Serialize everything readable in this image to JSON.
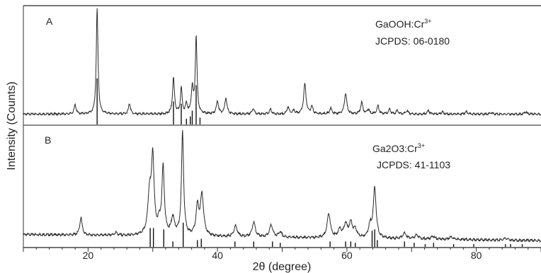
{
  "chart_data": {
    "type": "line",
    "xlabel": "2θ (degree)",
    "ylabel": "Intensity (Counts)",
    "xlim": [
      10,
      90
    ],
    "x_ticks": [
      20,
      40,
      60,
      80
    ],
    "grid": false,
    "panels": [
      {
        "label": "A",
        "compound": "GaOOH:Cr",
        "compound_superscript": "3+",
        "reference": "JCPDS: 06-0180",
        "ylim": [
          0,
          100
        ],
        "baseline": 9,
        "peaks": [
          {
            "x": 18.0,
            "height": 8,
            "width": 0.18
          },
          {
            "x": 21.4,
            "height": 91,
            "width": 0.16
          },
          {
            "x": 26.4,
            "height": 9,
            "width": 0.18
          },
          {
            "x": 33.2,
            "height": 31,
            "width": 0.18
          },
          {
            "x": 34.4,
            "height": 22,
            "width": 0.16
          },
          {
            "x": 35.2,
            "height": 8,
            "width": 0.18
          },
          {
            "x": 36.1,
            "height": 22,
            "width": 0.18
          },
          {
            "x": 36.7,
            "height": 66,
            "width": 0.16
          },
          {
            "x": 40.0,
            "height": 11,
            "width": 0.2
          },
          {
            "x": 41.3,
            "height": 14,
            "width": 0.2
          },
          {
            "x": 45.5,
            "height": 5,
            "width": 0.2
          },
          {
            "x": 48.2,
            "height": 4,
            "width": 0.2
          },
          {
            "x": 50.9,
            "height": 6,
            "width": 0.2
          },
          {
            "x": 51.8,
            "height": 3,
            "width": 0.2
          },
          {
            "x": 53.5,
            "height": 26,
            "width": 0.22
          },
          {
            "x": 54.6,
            "height": 6,
            "width": 0.2
          },
          {
            "x": 57.5,
            "height": 5,
            "width": 0.2
          },
          {
            "x": 59.8,
            "height": 18,
            "width": 0.22
          },
          {
            "x": 62.3,
            "height": 10,
            "width": 0.2
          },
          {
            "x": 63.3,
            "height": 4,
            "width": 0.2
          },
          {
            "x": 64.8,
            "height": 7,
            "width": 0.2
          },
          {
            "x": 66.6,
            "height": 4,
            "width": 0.2
          },
          {
            "x": 67.8,
            "height": 3,
            "width": 0.2
          },
          {
            "x": 69.3,
            "height": 3,
            "width": 0.2
          },
          {
            "x": 72.6,
            "height": 3,
            "width": 0.2
          },
          {
            "x": 74.8,
            "height": 2,
            "width": 0.2
          },
          {
            "x": 78.5,
            "height": 2,
            "width": 0.2
          },
          {
            "x": 82.3,
            "height": 1.5,
            "width": 0.2
          },
          {
            "x": 87.6,
            "height": 2,
            "width": 0.2
          }
        ],
        "reference_lines": [
          {
            "x": 21.4,
            "height": 40
          },
          {
            "x": 33.2,
            "height": 20
          },
          {
            "x": 34.4,
            "height": 18
          },
          {
            "x": 35.2,
            "height": 5
          },
          {
            "x": 35.8,
            "height": 7
          },
          {
            "x": 36.1,
            "height": 12
          },
          {
            "x": 36.7,
            "height": 34
          },
          {
            "x": 37.3,
            "height": 6
          }
        ]
      },
      {
        "label": "B",
        "compound": "Ga2O3:Cr",
        "compound_superscript": "3+",
        "reference": "JCPDS: 41-1103",
        "ylim": [
          0,
          100
        ],
        "baseline": 8,
        "peaks": [
          {
            "x": 18.9,
            "height": 13,
            "width": 0.22
          },
          {
            "x": 24.3,
            "height": 2,
            "width": 0.25
          },
          {
            "x": 29.5,
            "height": 30,
            "width": 0.3
          },
          {
            "x": 30.0,
            "height": 56,
            "width": 0.24
          },
          {
            "x": 31.0,
            "height": 8,
            "width": 0.3
          },
          {
            "x": 31.6,
            "height": 50,
            "width": 0.22
          },
          {
            "x": 33.1,
            "height": 13,
            "width": 0.3
          },
          {
            "x": 34.6,
            "height": 77,
            "width": 0.2
          },
          {
            "x": 36.9,
            "height": 21,
            "width": 0.26
          },
          {
            "x": 37.6,
            "height": 30,
            "width": 0.3
          },
          {
            "x": 42.8,
            "height": 8,
            "width": 0.3
          },
          {
            "x": 45.6,
            "height": 11,
            "width": 0.3
          },
          {
            "x": 48.3,
            "height": 9,
            "width": 0.3
          },
          {
            "x": 49.7,
            "height": 4,
            "width": 0.3
          },
          {
            "x": 57.2,
            "height": 18,
            "width": 0.3
          },
          {
            "x": 58.9,
            "height": 6,
            "width": 0.3
          },
          {
            "x": 59.8,
            "height": 10,
            "width": 0.3
          },
          {
            "x": 60.6,
            "height": 11,
            "width": 0.3
          },
          {
            "x": 61.3,
            "height": 6,
            "width": 0.3
          },
          {
            "x": 63.6,
            "height": 9,
            "width": 0.3
          },
          {
            "x": 64.3,
            "height": 37,
            "width": 0.26
          },
          {
            "x": 68.9,
            "height": 4,
            "width": 0.35
          },
          {
            "x": 70.8,
            "height": 3,
            "width": 0.35
          },
          {
            "x": 73.3,
            "height": 2,
            "width": 0.35
          },
          {
            "x": 76.1,
            "height": 2,
            "width": 0.35
          },
          {
            "x": 84.5,
            "height": 1.5,
            "width": 0.35
          }
        ],
        "reference_lines": [
          {
            "x": 29.6,
            "height": 14
          },
          {
            "x": 30.1,
            "height": 14
          },
          {
            "x": 31.7,
            "height": 13
          },
          {
            "x": 33.1,
            "height": 4
          },
          {
            "x": 34.7,
            "height": 18
          },
          {
            "x": 36.9,
            "height": 5
          },
          {
            "x": 37.5,
            "height": 6
          },
          {
            "x": 42.7,
            "height": 4
          },
          {
            "x": 45.6,
            "height": 4
          },
          {
            "x": 48.5,
            "height": 4
          },
          {
            "x": 49.7,
            "height": 3
          },
          {
            "x": 57.4,
            "height": 4
          },
          {
            "x": 59.8,
            "height": 4
          },
          {
            "x": 60.6,
            "height": 4
          },
          {
            "x": 61.3,
            "height": 3
          },
          {
            "x": 63.9,
            "height": 12
          },
          {
            "x": 64.3,
            "height": 13
          },
          {
            "x": 64.7,
            "height": 5
          },
          {
            "x": 68.9,
            "height": 4
          },
          {
            "x": 70.4,
            "height": 3
          },
          {
            "x": 72.1,
            "height": 2
          },
          {
            "x": 73.4,
            "height": 3
          },
          {
            "x": 76.5,
            "height": 2
          },
          {
            "x": 79.6,
            "height": 2
          },
          {
            "x": 84.5,
            "height": 2
          },
          {
            "x": 85.3,
            "height": 2
          },
          {
            "x": 87.1,
            "height": 2
          }
        ]
      }
    ]
  }
}
